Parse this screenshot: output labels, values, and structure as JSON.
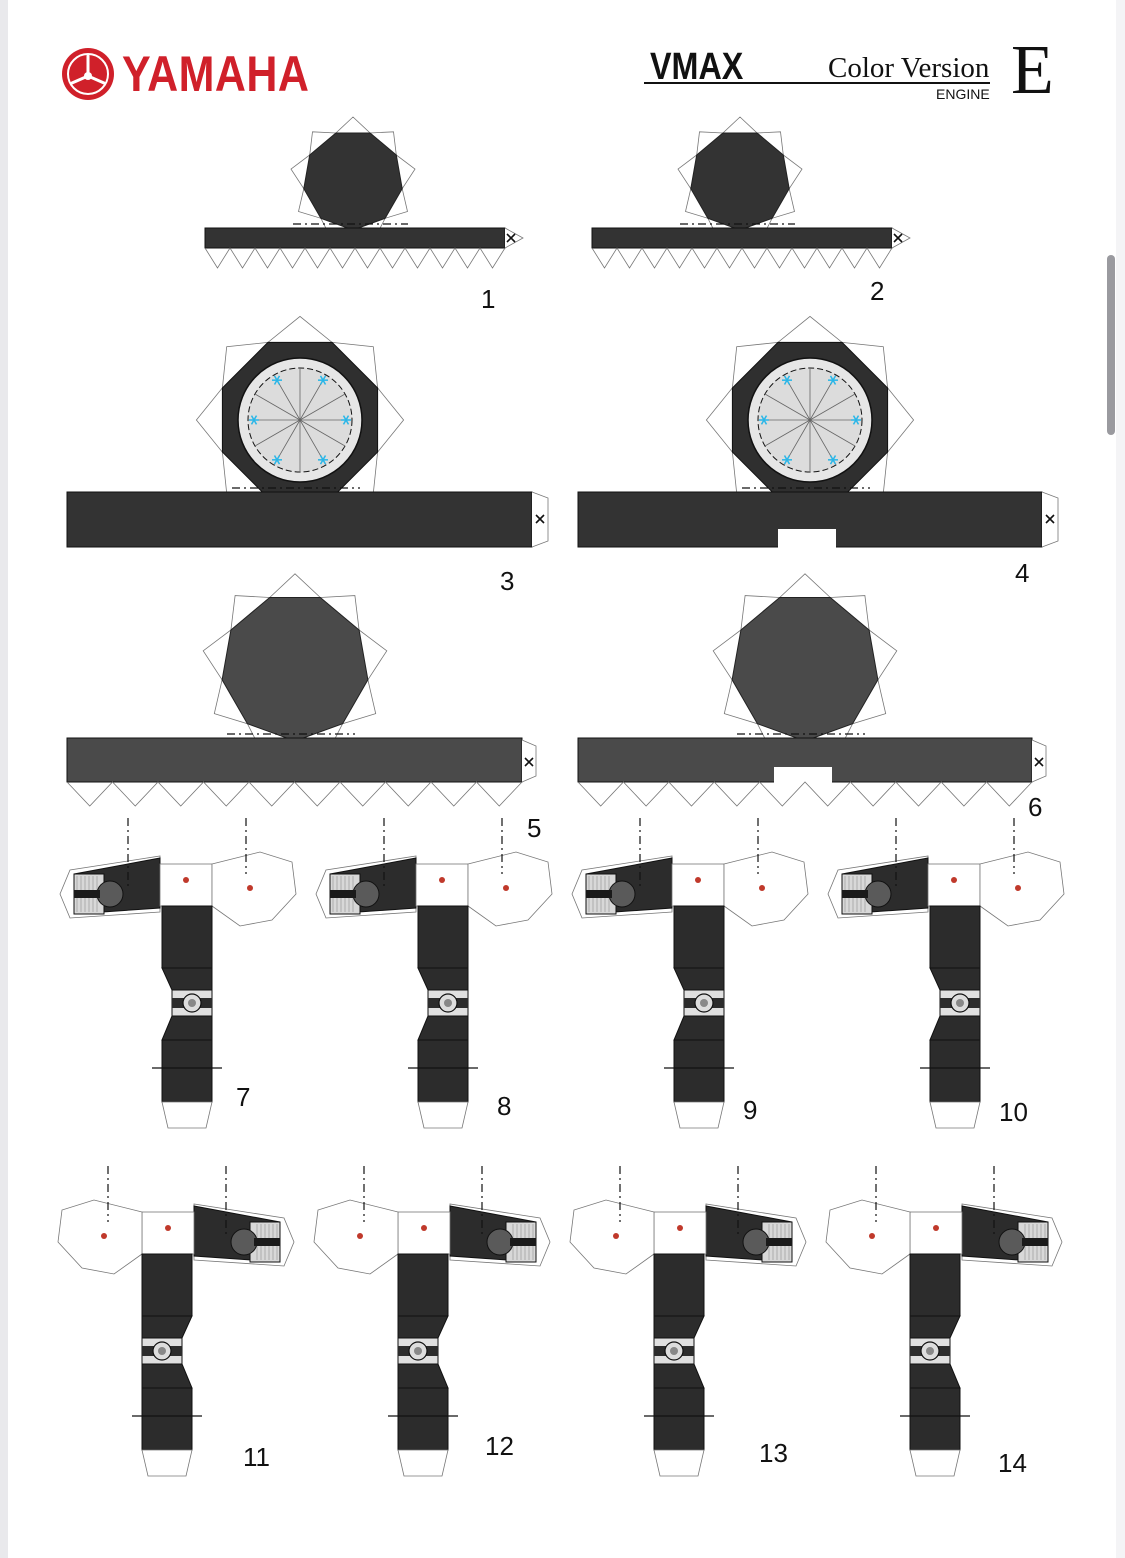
{
  "header": {
    "brand": "YAMAHA",
    "model": "VMAX",
    "version": "Color Version",
    "subtitle": "ENGINE",
    "sheet_letter": "E"
  },
  "icons": {
    "logo": "yamaha-tuning-fork-emblem-icon",
    "glue_mark": "x-mark-icon"
  },
  "colors": {
    "brand_red": "#d0202a",
    "part_dark": "#333333",
    "part_mid": "#4a4a4a",
    "hub_dot": "#c0392b",
    "spoke_accent": "#29b6e8"
  },
  "parts": [
    {
      "label": "1"
    },
    {
      "label": "2"
    },
    {
      "label": "3"
    },
    {
      "label": "4"
    },
    {
      "label": "5"
    },
    {
      "label": "6"
    },
    {
      "label": "7"
    },
    {
      "label": "8"
    },
    {
      "label": "9"
    },
    {
      "label": "10"
    },
    {
      "label": "11"
    },
    {
      "label": "12"
    },
    {
      "label": "13"
    },
    {
      "label": "14"
    }
  ]
}
